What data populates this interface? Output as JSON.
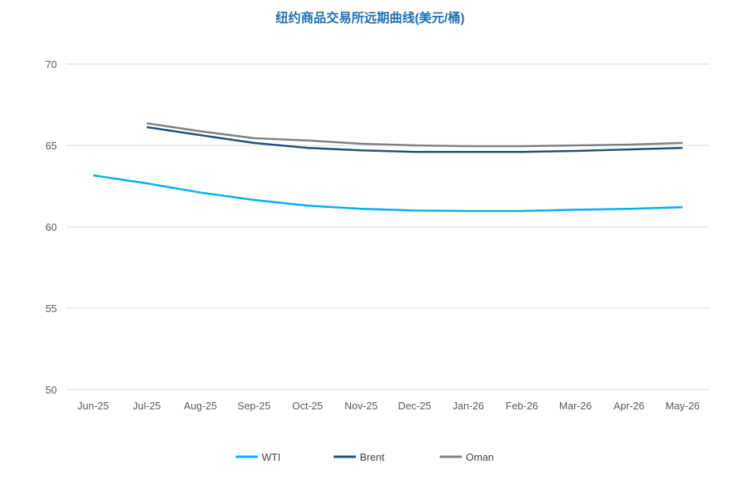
{
  "chart_data": {
    "type": "line",
    "title": "纽约商品交易所远期曲线(美元/桶)",
    "xlabel": "",
    "ylabel": "",
    "ylim": [
      50,
      70
    ],
    "yticks": [
      50,
      55,
      60,
      65,
      70
    ],
    "grid": true,
    "legend_position": "bottom",
    "categories": [
      "Jun-25",
      "Jul-25",
      "Aug-25",
      "Sep-25",
      "Oct-25",
      "Nov-25",
      "Dec-25",
      "Jan-26",
      "Feb-26",
      "Mar-26",
      "Apr-26",
      "May-26"
    ],
    "series": [
      {
        "name": "WTI",
        "color": "#00b0f0",
        "values": [
          63.16,
          62.67,
          62.1,
          61.65,
          61.3,
          61.1,
          61.0,
          60.97,
          60.97,
          61.05,
          61.1,
          61.2
        ]
      },
      {
        "name": "Brent",
        "color": "#1f4e79",
        "values": [
          null,
          66.12,
          65.63,
          65.15,
          64.85,
          64.7,
          64.6,
          64.6,
          64.6,
          64.66,
          64.75,
          64.85
        ]
      },
      {
        "name": "Oman",
        "color": "#808080",
        "values": [
          null,
          66.36,
          65.87,
          65.44,
          65.3,
          65.1,
          65.0,
          64.95,
          64.95,
          65.0,
          65.05,
          65.15
        ]
      }
    ]
  }
}
